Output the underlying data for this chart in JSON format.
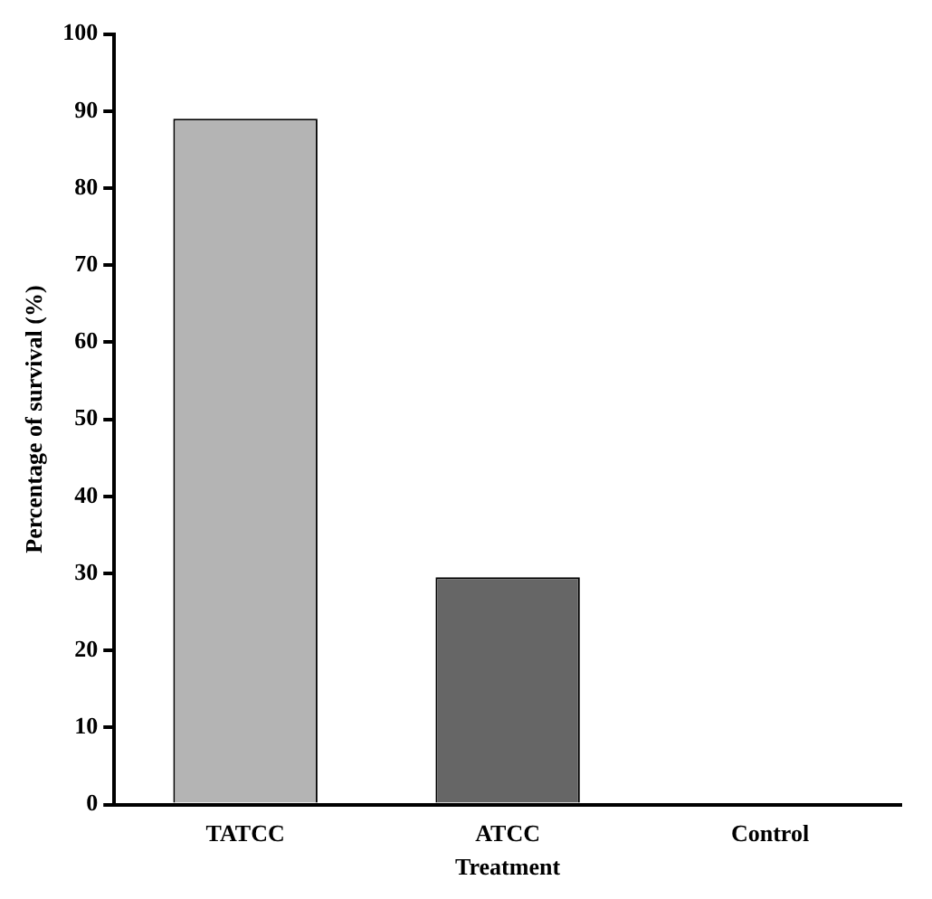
{
  "chart_data": {
    "type": "bar",
    "xlabel": "Treatment",
    "ylabel": "Percentage of survival (%)",
    "categories": [
      "TATCC",
      "ATCC",
      "Control"
    ],
    "values": [
      89,
      29.5,
      0
    ],
    "colors": [
      "#b4b4b4",
      "#666666",
      "#888888"
    ],
    "ylim": [
      0,
      100
    ],
    "yticks": [
      0,
      10,
      20,
      30,
      40,
      50,
      60,
      70,
      80,
      90,
      100
    ],
    "grid": false,
    "legend": false
  }
}
